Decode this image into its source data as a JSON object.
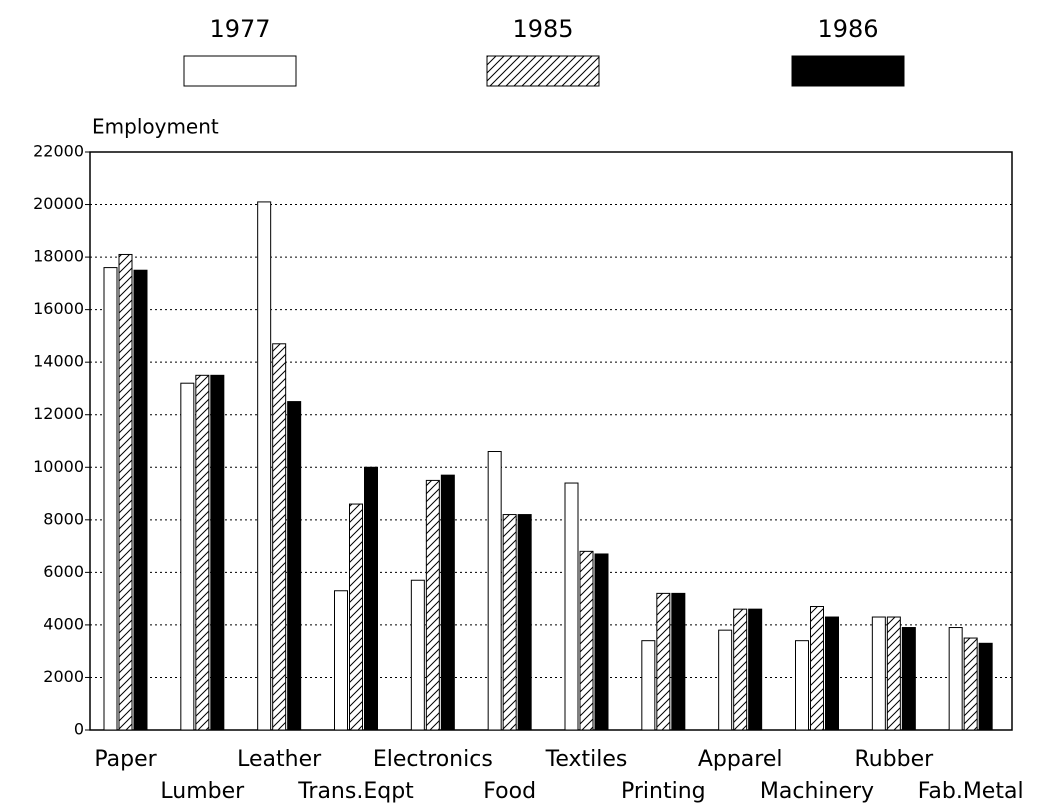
{
  "chart_data": {
    "type": "bar",
    "y_label": "Employment",
    "categories": [
      "Paper",
      "Lumber",
      "Leather",
      "Trans.Eqpt",
      "Electronics",
      "Food",
      "Textiles",
      "Printing",
      "Apparel",
      "Machinery",
      "Rubber",
      "Fab.Metal"
    ],
    "series": [
      {
        "name": "1977",
        "color": "#ffffff",
        "values": [
          17600,
          13200,
          20100,
          5300,
          5700,
          10600,
          9400,
          3400,
          3800,
          3400,
          4300,
          3900
        ]
      },
      {
        "name": "1985",
        "color": "#ffffff",
        "pattern": "hatch",
        "values": [
          18100,
          13500,
          14700,
          8600,
          9500,
          8200,
          6800,
          5200,
          4600,
          4700,
          4300,
          3500
        ]
      },
      {
        "name": "1986",
        "color": "#000000",
        "values": [
          17500,
          13500,
          12500,
          10000,
          9700,
          8200,
          6700,
          5200,
          4600,
          4300,
          3900,
          3300
        ]
      }
    ],
    "ylim": [
      0,
      22000
    ],
    "yticks": [
      0,
      2000,
      4000,
      6000,
      8000,
      10000,
      12000,
      14000,
      16000,
      18000,
      20000,
      22000
    ],
    "grid": true
  }
}
